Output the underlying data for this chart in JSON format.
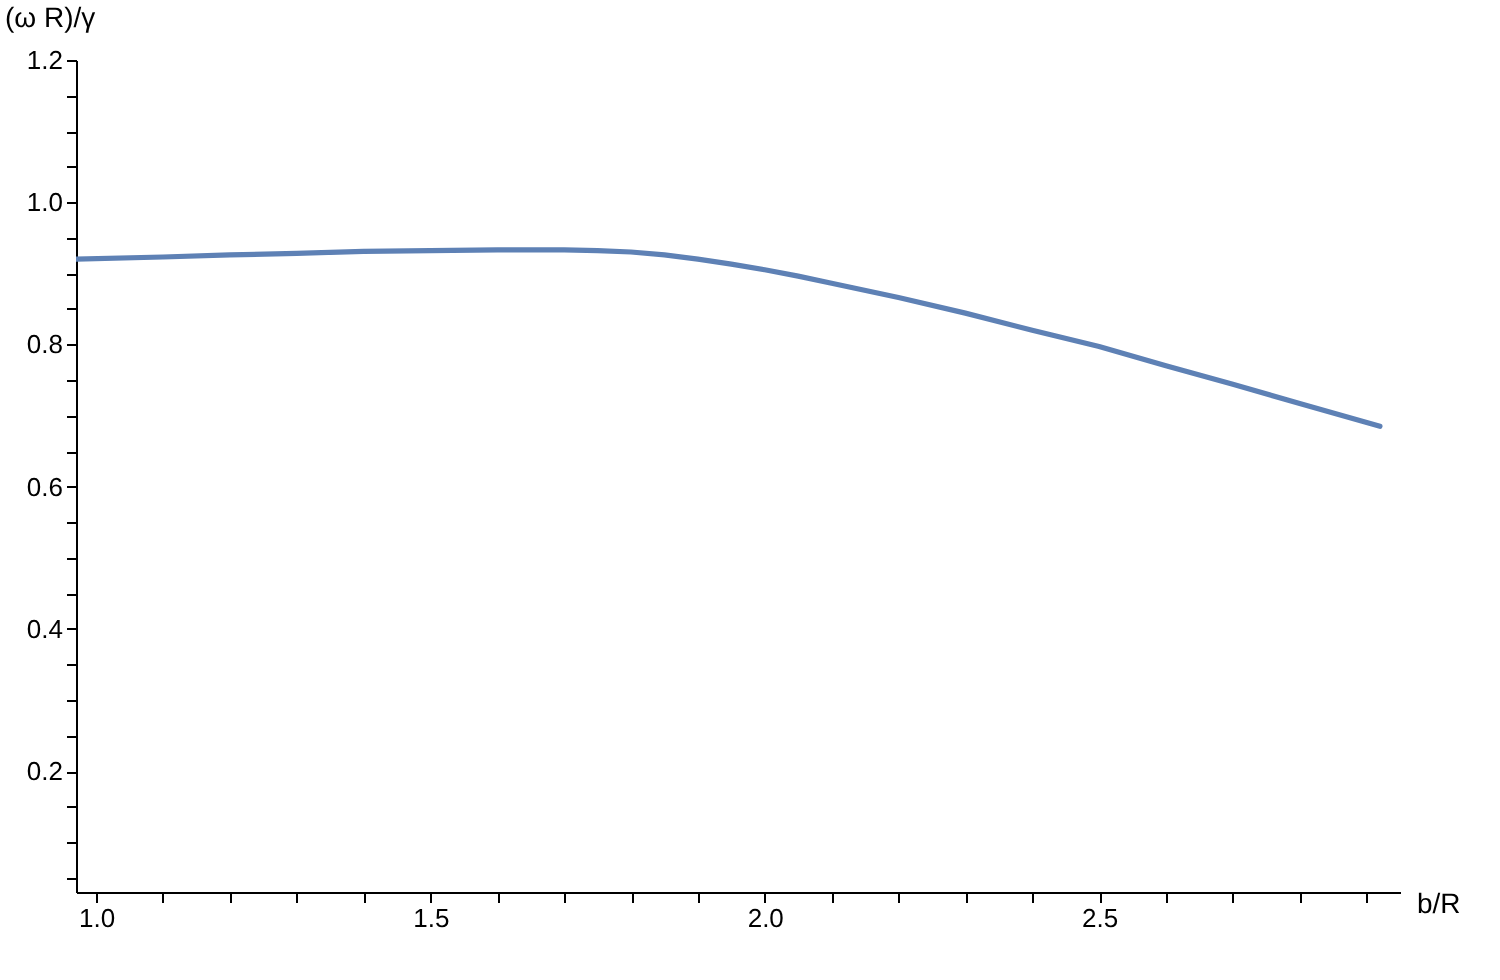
{
  "chart_data": {
    "type": "line",
    "xlabel": "b/R",
    "ylabel": "(ω R)/γ",
    "x": [
      0.97,
      1.1,
      1.2,
      1.3,
      1.4,
      1.5,
      1.6,
      1.7,
      1.75,
      1.8,
      1.85,
      1.9,
      1.95,
      2.0,
      2.05,
      2.1,
      2.2,
      2.3,
      2.4,
      2.5,
      2.6,
      2.7,
      2.8,
      2.92
    ],
    "series": [
      {
        "color": "#5e81b5",
        "values": [
          0.92,
          0.923,
          0.926,
          0.928,
          0.931,
          0.932,
          0.933,
          0.933,
          0.932,
          0.93,
          0.926,
          0.92,
          0.913,
          0.905,
          0.896,
          0.886,
          0.866,
          0.844,
          0.82,
          0.797,
          0.77,
          0.744,
          0.717,
          0.685
        ]
      }
    ],
    "xlim": [
      0.97,
      2.95
    ],
    "ylim": [
      0.03,
      1.2
    ],
    "xticks": [
      {
        "value": 1.0,
        "label": "1.0"
      },
      {
        "value": 1.1,
        "label": null
      },
      {
        "value": 1.2,
        "label": null
      },
      {
        "value": 1.3,
        "label": null
      },
      {
        "value": 1.4,
        "label": null
      },
      {
        "value": 1.5,
        "label": "1.5"
      },
      {
        "value": 1.6,
        "label": null
      },
      {
        "value": 1.7,
        "label": null
      },
      {
        "value": 1.8,
        "label": null
      },
      {
        "value": 1.9,
        "label": null
      },
      {
        "value": 2.0,
        "label": "2.0"
      },
      {
        "value": 2.1,
        "label": null
      },
      {
        "value": 2.2,
        "label": null
      },
      {
        "value": 2.3,
        "label": null
      },
      {
        "value": 2.4,
        "label": null
      },
      {
        "value": 2.5,
        "label": "2.5"
      },
      {
        "value": 2.6,
        "label": null
      },
      {
        "value": 2.7,
        "label": null
      },
      {
        "value": 2.8,
        "label": null
      },
      {
        "value": 2.9,
        "label": null
      }
    ],
    "yticks": [
      {
        "value": 0.05,
        "label": null
      },
      {
        "value": 0.1,
        "label": null
      },
      {
        "value": 0.15,
        "label": null
      },
      {
        "value": 0.2,
        "label": "0.2"
      },
      {
        "value": 0.25,
        "label": null
      },
      {
        "value": 0.3,
        "label": null
      },
      {
        "value": 0.35,
        "label": null
      },
      {
        "value": 0.4,
        "label": "0.4"
      },
      {
        "value": 0.45,
        "label": null
      },
      {
        "value": 0.5,
        "label": null
      },
      {
        "value": 0.55,
        "label": null
      },
      {
        "value": 0.6,
        "label": "0.6"
      },
      {
        "value": 0.65,
        "label": null
      },
      {
        "value": 0.7,
        "label": null
      },
      {
        "value": 0.75,
        "label": null
      },
      {
        "value": 0.8,
        "label": "0.8"
      },
      {
        "value": 0.85,
        "label": null
      },
      {
        "value": 0.9,
        "label": null
      },
      {
        "value": 0.95,
        "label": null
      },
      {
        "value": 1.0,
        "label": "1.0"
      },
      {
        "value": 1.05,
        "label": null
      },
      {
        "value": 1.1,
        "label": null
      },
      {
        "value": 1.15,
        "label": null
      },
      {
        "value": 1.2,
        "label": "1.2"
      }
    ],
    "grid": false,
    "marker": "none",
    "line_style": "solid"
  }
}
